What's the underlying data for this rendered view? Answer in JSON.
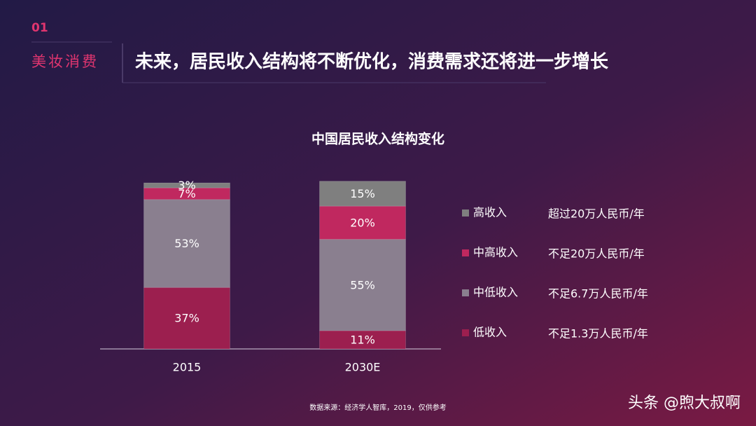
{
  "header": {
    "number": "01",
    "section": "美妆消费",
    "title": "未来，居民收入结构将不断优化，消费需求还将进一步增长"
  },
  "chart_data": {
    "type": "stacked-bar",
    "title": "中国居民收入结构变化",
    "categories": [
      "2015",
      "2030E"
    ],
    "ylim": [
      0,
      100
    ],
    "series": [
      {
        "name": "低收入",
        "note": "不足1.3万人民币/年",
        "color": "#9c1f4f",
        "values": [
          37,
          11
        ],
        "value_labels": [
          "37%",
          "11%"
        ]
      },
      {
        "name": "中低收入",
        "note": "不足6.7万人民币/年",
        "color": "#8a7f8f",
        "values": [
          53,
          55
        ],
        "value_labels": [
          "53%",
          "55%"
        ]
      },
      {
        "name": "中高收入",
        "note": "不足20万人民币/年",
        "color": "#c0285f",
        "values": [
          7,
          20
        ],
        "value_labels": [
          "7%",
          "20%"
        ]
      },
      {
        "name": "高收入",
        "note": "超过20万人民币/年",
        "color": "#7f7f7f",
        "values": [
          3,
          15
        ],
        "value_labels": [
          "3%",
          "15%"
        ]
      }
    ]
  },
  "footer": {
    "source": "数据来源：经济学人智库，2019，仅供参考",
    "watermark": "头条 @煦大叔啊"
  }
}
